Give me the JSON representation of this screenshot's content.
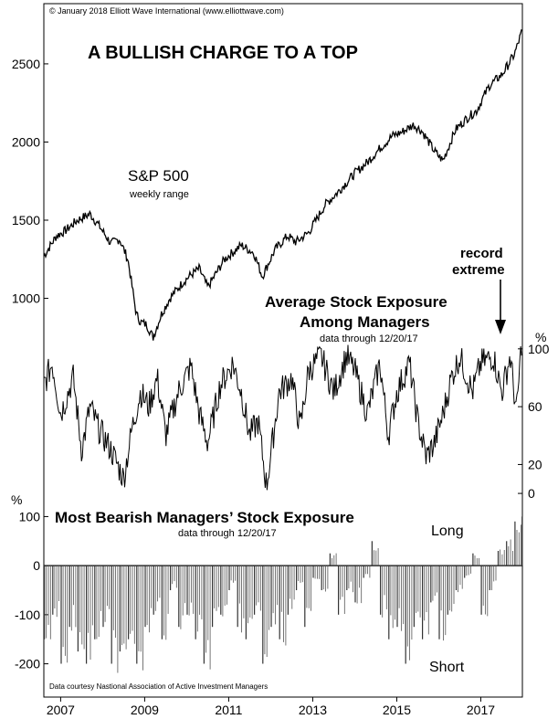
{
  "chart_data": {
    "type": "line",
    "copyright": "© January 2018 Elliott Wave International (www.elliottwave.com)",
    "title": "A BULLISH CHARGE TO A TOP",
    "x_ticks": [
      "2007",
      "2009",
      "2011",
      "2013",
      "2015",
      "2017"
    ],
    "panels": [
      {
        "name": "S&P 500",
        "subtitle": "weekly range",
        "type": "line",
        "y_ticks": [
          1000,
          1500,
          2000,
          2500
        ],
        "ylim": [
          670,
          2780
        ],
        "series": [
          {
            "x": [
              2006.6,
              2006.9,
              2007.1,
              2007.4,
              2007.7,
              2007.9,
              2008.2,
              2008.4,
              2008.6,
              2008.8,
              2008.9,
              2009.05,
              2009.2,
              2009.4,
              2009.6,
              2009.9,
              2010.1,
              2010.3,
              2010.5,
              2010.9,
              2011.3,
              2011.6,
              2011.8,
              2012.1,
              2012.4,
              2012.6,
              2012.9,
              2013.3,
              2013.6,
              2014.0,
              2014.3,
              2014.6,
              2014.9,
              2015.1,
              2015.4,
              2015.6,
              2015.9,
              2016.1,
              2016.4,
              2016.7,
              2016.9,
              2017.2,
              2017.5,
              2017.8,
              2017.97
            ],
            "y": [
              1270,
              1400,
              1430,
              1500,
              1540,
              1470,
              1350,
              1380,
              1250,
              900,
              850,
              830,
              750,
              900,
              1000,
              1100,
              1150,
              1190,
              1070,
              1250,
              1340,
              1290,
              1140,
              1310,
              1400,
              1360,
              1420,
              1600,
              1680,
              1800,
              1870,
              1960,
              2040,
              2060,
              2110,
              2070,
              1940,
              1880,
              2080,
              2160,
              2200,
              2360,
              2430,
              2560,
              2700
            ]
          }
        ]
      },
      {
        "name": "Average Stock Exposure Among Managers",
        "subtitle": "data through 12/20/17",
        "type": "line",
        "unit": "%",
        "y_ticks": [
          0,
          20,
          60,
          100
        ],
        "ylim": [
          -5,
          110
        ],
        "annotation": "record extreme",
        "series": [
          {
            "x": [
              2006.6,
              2006.8,
              2007.0,
              2007.3,
              2007.5,
              2007.7,
              2007.9,
              2008.2,
              2008.5,
              2008.7,
              2008.9,
              2009.1,
              2009.3,
              2009.5,
              2009.8,
              2010.1,
              2010.3,
              2010.5,
              2010.8,
              2011.1,
              2011.3,
              2011.5,
              2011.7,
              2011.9,
              2012.2,
              2012.5,
              2012.7,
              2012.9,
              2013.2,
              2013.5,
              2013.8,
              2014.0,
              2014.3,
              2014.6,
              2014.8,
              2015.0,
              2015.3,
              2015.5,
              2015.7,
              2015.9,
              2016.1,
              2016.3,
              2016.5,
              2016.8,
              2017.0,
              2017.3,
              2017.5,
              2017.7,
              2017.85,
              2017.97
            ],
            "y": [
              75,
              90,
              55,
              80,
              30,
              60,
              45,
              30,
              10,
              45,
              70,
              60,
              80,
              40,
              70,
              88,
              55,
              35,
              75,
              90,
              70,
              40,
              50,
              5,
              70,
              80,
              45,
              85,
              95,
              70,
              95,
              85,
              55,
              90,
              40,
              70,
              90,
              50,
              25,
              35,
              55,
              80,
              95,
              70,
              90,
              95,
              70,
              95,
              55,
              105
            ]
          }
        ]
      },
      {
        "name": "Most Bearish Managers’ Stock Exposure",
        "subtitle": "data through 12/20/17",
        "type": "bar",
        "unit": "%",
        "y_ticks": [
          -200,
          -100,
          0,
          100
        ],
        "ylim": [
          -225,
          125
        ],
        "labels": [
          "Long",
          "Short"
        ],
        "source": "Data courtesy Nastional Association of Active Investment Managers",
        "series": [
          {
            "x": [
              2006.6,
              2006.8,
              2007.0,
              2007.2,
              2007.4,
              2007.6,
              2007.8,
              2008.0,
              2008.2,
              2008.4,
              2008.6,
              2008.8,
              2009.0,
              2009.2,
              2009.4,
              2009.6,
              2009.8,
              2010.0,
              2010.2,
              2010.4,
              2010.6,
              2010.8,
              2011.0,
              2011.2,
              2011.4,
              2011.6,
              2011.8,
              2012.0,
              2012.2,
              2012.4,
              2012.6,
              2012.8,
              2013.0,
              2013.2,
              2013.4,
              2013.6,
              2013.8,
              2014.0,
              2014.2,
              2014.4,
              2014.6,
              2014.8,
              2015.0,
              2015.2,
              2015.4,
              2015.6,
              2015.8,
              2016.0,
              2016.2,
              2016.4,
              2016.6,
              2016.8,
              2017.0,
              2017.2,
              2017.4,
              2017.6,
              2017.8,
              2017.97
            ],
            "y": [
              -150,
              -100,
              -200,
              -125,
              -175,
              -200,
              -150,
              -125,
              -200,
              -175,
              -150,
              -200,
              -125,
              -100,
              -150,
              -50,
              -125,
              -100,
              -150,
              -200,
              -125,
              -100,
              -50,
              -125,
              -150,
              -100,
              -200,
              -125,
              -150,
              -100,
              -50,
              -125,
              -25,
              -50,
              25,
              -100,
              -50,
              -75,
              -25,
              50,
              -100,
              -150,
              -125,
              -200,
              -125,
              -150,
              -75,
              -150,
              -100,
              -50,
              -25,
              25,
              -100,
              -50,
              30,
              50,
              90,
              100
            ]
          }
        ]
      }
    ]
  }
}
